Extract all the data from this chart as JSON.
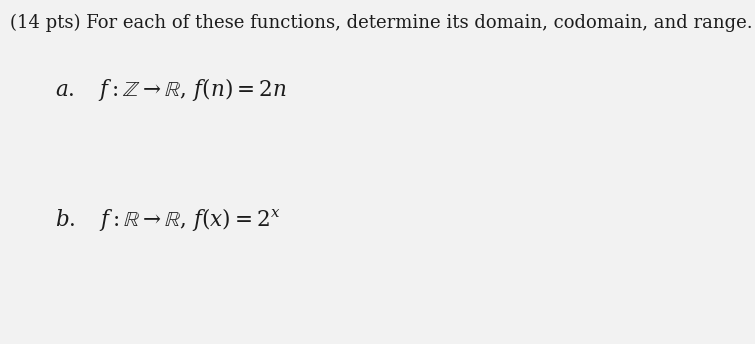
{
  "background_color": "#f2f2f2",
  "title_text": "(14 pts) For each of these functions, determine its domain, codomain, and range.",
  "title_fontsize": 13.0,
  "part_a_full": "$a. \\quad f:\\mathbb{Z} \\rightarrow \\mathbb{R},\\, f(n) = 2n$",
  "part_b_full": "$b. \\quad f:\\mathbb{R} \\rightarrow \\mathbb{R},\\, f(x) = 2^x$",
  "part_a_fontsize": 15.5,
  "part_b_fontsize": 15.5,
  "text_color": "#1c1c1c"
}
